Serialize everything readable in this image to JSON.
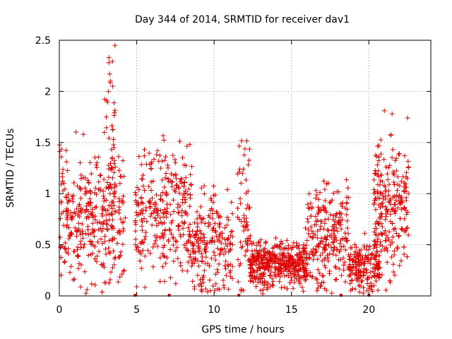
{
  "chart_data": {
    "type": "scatter",
    "title": "Day 344 of 2014, SRMTID for receiver dav1",
    "xlabel": "GPS time / hours",
    "ylabel": "SRMTID / TECUs",
    "xlim": [
      0,
      24
    ],
    "ylim": [
      0,
      2.5
    ],
    "xticks": [
      "0",
      "5",
      "10",
      "15",
      "20"
    ],
    "xtick_values": [
      0,
      5,
      10,
      15,
      20
    ],
    "yticks": [
      "0",
      "0.5",
      "1",
      "1.5",
      "2",
      "2.5"
    ],
    "ytick_values": [
      0,
      0.5,
      1,
      1.5,
      2,
      2.5
    ],
    "grid": true,
    "marker": "+",
    "color": "#e00000",
    "series": [
      {
        "name": "SRMTID",
        "segments": [
          {
            "x_range": [
              0.0,
              4.3
            ],
            "center": 0.75,
            "spread": 0.32,
            "count": 330
          },
          {
            "x_range": [
              2.9,
              3.6
            ],
            "center": 1.45,
            "spread": 0.45,
            "count": 45
          },
          {
            "x_range": [
              4.9,
              8.6
            ],
            "center": 0.8,
            "spread": 0.35,
            "count": 300
          },
          {
            "x_range": [
              8.6,
              11.2
            ],
            "center": 0.5,
            "spread": 0.28,
            "count": 200
          },
          {
            "x_range": [
              11.5,
              12.3
            ],
            "center": 0.8,
            "spread": 0.35,
            "count": 60
          },
          {
            "x_range": [
              12.3,
              16.0
            ],
            "center": 0.32,
            "spread": 0.13,
            "count": 420
          },
          {
            "x_range": [
              16.0,
              18.7
            ],
            "center": 0.6,
            "spread": 0.28,
            "count": 230
          },
          {
            "x_range": [
              18.7,
              20.7
            ],
            "center": 0.28,
            "spread": 0.14,
            "count": 190
          },
          {
            "x_range": [
              20.3,
              22.6
            ],
            "center": 0.85,
            "spread": 0.35,
            "count": 230
          }
        ],
        "peaks": [
          {
            "x": 3.2,
            "y": 2.33
          },
          {
            "x": 3.2,
            "y": 2.28
          },
          {
            "x": 3.25,
            "y": 2.17
          },
          {
            "x": 3.3,
            "y": 2.1
          },
          {
            "x": 3.45,
            "y": 2.05
          },
          {
            "x": 5.0,
            "y": 0.09
          },
          {
            "x": 21.0,
            "y": 1.81
          },
          {
            "x": 21.5,
            "y": 1.78
          },
          {
            "x": 22.5,
            "y": 1.74
          },
          {
            "x": 1.55,
            "y": 1.58
          }
        ],
        "zero_markers": [
          4.9,
          7.1,
          11.6,
          18.2,
          20.0
        ]
      }
    ]
  }
}
